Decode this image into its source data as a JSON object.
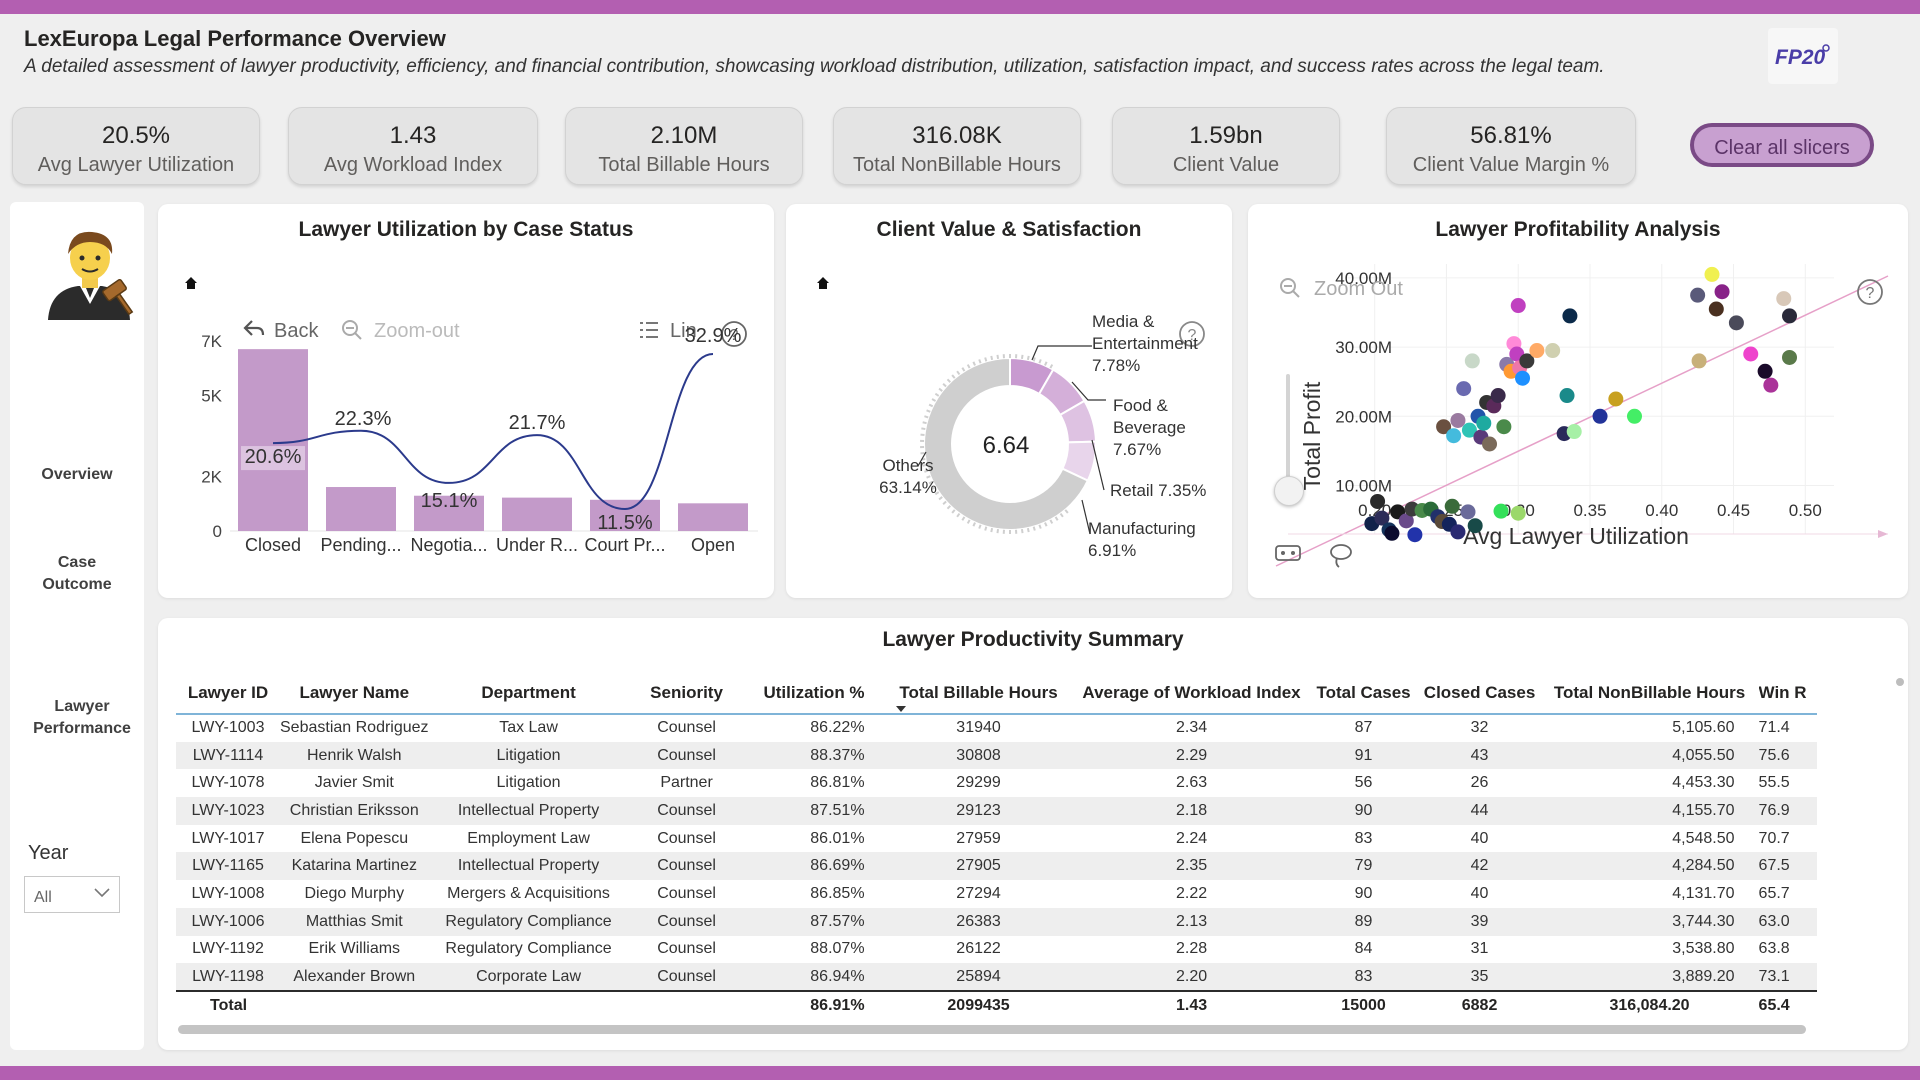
{
  "header": {
    "title": "LexEuropa Legal Performance Overview",
    "subtitle": "A detailed assessment of lawyer productivity, efficiency, and financial contribution, showcasing workload distribution, utilization, satisfaction impact, and success rates across the legal team.",
    "logo_text": "FP20"
  },
  "kpis": [
    {
      "value": "20.5%",
      "label": "Avg Lawyer Utilization"
    },
    {
      "value": "1.43",
      "label": "Avg Workload Index"
    },
    {
      "value": "2.10M",
      "label": "Total Billable Hours"
    },
    {
      "value": "316.08K",
      "label": "Total NonBillable Hours"
    },
    {
      "value": "1.59bn",
      "label": "Client Value"
    },
    {
      "value": "56.81%",
      "label": "Client Value Margin %"
    }
  ],
  "clear_button": "Clear all slicers",
  "nav": {
    "items": [
      "Overview",
      "Case\nOutcome",
      "Lawyer\nPerformance"
    ],
    "year_label": "Year",
    "year_value": "All"
  },
  "utilization_chart": {
    "title": "Lawyer Utilization by Case Status",
    "toolbar": {
      "back": "Back",
      "zoom": "Zoom-out",
      "lin": "Lin"
    }
  },
  "donut_chart": {
    "title": "Client Value & Satisfaction",
    "center_value": "6.64"
  },
  "scatter_chart": {
    "title": "Lawyer Profitability Analysis",
    "zoom_out": "Zoom Out"
  },
  "chart_data": [
    {
      "type": "bar",
      "title": "Lawyer Utilization by Case Status",
      "categories": [
        "Closed",
        "Pending...",
        "Negotia...",
        "Under R...",
        "Court Pr...",
        "Open"
      ],
      "series": [
        {
          "values": [
            6700,
            1620,
            1300,
            1230,
            1150,
            1020
          ]
        },
        {
          "type": "line",
          "values": [
            20.6,
            22.3,
            15.1,
            21.7,
            11.5,
            32.9
          ],
          "labels": [
            "20.6%",
            "22.3%",
            "15.1%",
            "21.7%",
            "11.5%",
            "32.9%"
          ]
        }
      ],
      "yticks": [
        "0",
        "2K",
        "5K",
        "7K"
      ],
      "ylim": [
        0,
        7000
      ]
    },
    {
      "type": "pie",
      "title": "Client Value & Satisfaction",
      "slices": [
        {
          "label": "Media & Entertainment",
          "value": 7.78,
          "text": "7.78%",
          "color": "#c89ad0"
        },
        {
          "label": "Food & Beverage",
          "value": 7.67,
          "text": "7.67%",
          "color": "#d4afd9"
        },
        {
          "label": "Retail",
          "value": 7.35,
          "text": "7.35%",
          "color": "#dec2e2"
        },
        {
          "label": "Manufacturing",
          "value": 6.91,
          "text": "6.91%",
          "color": "#e8d5eb"
        },
        {
          "label": "Others",
          "value": 63.14,
          "text": "63.14%",
          "color": "#cfcfcf"
        }
      ]
    },
    {
      "type": "scatter",
      "title": "Lawyer Profitability Analysis",
      "xlabel": "Avg Lawyer Utilization",
      "ylabel": "Total Profit",
      "xticks": [
        "0.20",
        "0.25",
        "0.30",
        "0.35",
        "0.40",
        "0.45",
        "0.50"
      ],
      "yticks": [
        "10.00M",
        "20.00M",
        "30.00M",
        "40.00M"
      ],
      "xlim": [
        0.18,
        0.52
      ],
      "ylim": [
        3000000,
        42000000
      ],
      "points": [
        {
          "x": 0.198,
          "y": 4.5,
          "c": "#11224a"
        },
        {
          "x": 0.205,
          "y": 5.3,
          "c": "#2c2c58"
        },
        {
          "x": 0.21,
          "y": 3.6,
          "c": "#14335c"
        },
        {
          "x": 0.216,
          "y": 6.2,
          "c": "#1a1a1a"
        },
        {
          "x": 0.222,
          "y": 4.9,
          "c": "#6a4a8a"
        },
        {
          "x": 0.226,
          "y": 6.6,
          "c": "#3c3c3c"
        },
        {
          "x": 0.233,
          "y": 6.4,
          "c": "#4a8a4a"
        },
        {
          "x": 0.239,
          "y": 6.6,
          "c": "#2c6c3a"
        },
        {
          "x": 0.244,
          "y": 5.5,
          "c": "#22306b"
        },
        {
          "x": 0.247,
          "y": 4.8,
          "c": "#5a4a3a"
        },
        {
          "x": 0.252,
          "y": 4.4,
          "c": "#14245c"
        },
        {
          "x": 0.254,
          "y": 7.0,
          "c": "#3a6b3a"
        },
        {
          "x": 0.258,
          "y": 3.3,
          "c": "#2a2a72"
        },
        {
          "x": 0.265,
          "y": 6.2,
          "c": "#6a6a9a"
        },
        {
          "x": 0.27,
          "y": 4.2,
          "c": "#184a48"
        },
        {
          "x": 0.288,
          "y": 6.3,
          "c": "#34e05a"
        },
        {
          "x": 0.3,
          "y": 6.0,
          "c": "#9bd86b"
        },
        {
          "x": 0.212,
          "y": 3.1,
          "c": "#0b0b2e"
        },
        {
          "x": 0.228,
          "y": 2.9,
          "c": "#2233aa"
        },
        {
          "x": 0.202,
          "y": 7.7,
          "c": "#2a2a2a"
        },
        {
          "x": 0.248,
          "y": 18.5,
          "c": "#6a5040"
        },
        {
          "x": 0.255,
          "y": 17.2,
          "c": "#44bbdd"
        },
        {
          "x": 0.258,
          "y": 19.4,
          "c": "#9a7aa0"
        },
        {
          "x": 0.262,
          "y": 24.0,
          "c": "#6a6ab0"
        },
        {
          "x": 0.266,
          "y": 18.0,
          "c": "#2ec4b6"
        },
        {
          "x": 0.268,
          "y": 28.0,
          "c": "#c8d8c8"
        },
        {
          "x": 0.272,
          "y": 20.0,
          "c": "#2255aa"
        },
        {
          "x": 0.274,
          "y": 17.0,
          "c": "#5a3a7a"
        },
        {
          "x": 0.276,
          "y": 19.0,
          "c": "#1eaaa0"
        },
        {
          "x": 0.278,
          "y": 22.0,
          "c": "#333333"
        },
        {
          "x": 0.28,
          "y": 16.0,
          "c": "#7a6a5a"
        },
        {
          "x": 0.283,
          "y": 21.5,
          "c": "#5a2a5a"
        },
        {
          "x": 0.286,
          "y": 23.0,
          "c": "#3a2a4a"
        },
        {
          "x": 0.29,
          "y": 18.5,
          "c": "#4a8a4a"
        },
        {
          "x": 0.292,
          "y": 27.5,
          "c": "#8a7aaa"
        },
        {
          "x": 0.295,
          "y": 26.5,
          "c": "#ff9933"
        },
        {
          "x": 0.297,
          "y": 30.5,
          "c": "#ff8ad8"
        },
        {
          "x": 0.299,
          "y": 29.0,
          "c": "#c040c0"
        },
        {
          "x": 0.3,
          "y": 36.0,
          "c": "#c040c0"
        },
        {
          "x": 0.301,
          "y": 27.0,
          "c": "#ee77aa"
        },
        {
          "x": 0.303,
          "y": 25.5,
          "c": "#1e90ff"
        },
        {
          "x": 0.306,
          "y": 28.0,
          "c": "#3a3a3a"
        },
        {
          "x": 0.313,
          "y": 29.5,
          "c": "#ffaa66"
        },
        {
          "x": 0.324,
          "y": 29.5,
          "c": "#d0d0b0"
        },
        {
          "x": 0.332,
          "y": 17.5,
          "c": "#2a2a5a"
        },
        {
          "x": 0.334,
          "y": 23.0,
          "c": "#1a8a8a"
        },
        {
          "x": 0.336,
          "y": 34.5,
          "c": "#0b2a4a"
        },
        {
          "x": 0.339,
          "y": 17.8,
          "c": "#a6f0a6"
        },
        {
          "x": 0.357,
          "y": 20.0,
          "c": "#223399"
        },
        {
          "x": 0.368,
          "y": 22.5,
          "c": "#c8a020"
        },
        {
          "x": 0.381,
          "y": 20.0,
          "c": "#44ee66"
        },
        {
          "x": 0.425,
          "y": 37.5,
          "c": "#5a5a7a"
        },
        {
          "x": 0.426,
          "y": 28.0,
          "c": "#c8b07a"
        },
        {
          "x": 0.435,
          "y": 40.5,
          "c": "#f0f050"
        },
        {
          "x": 0.438,
          "y": 35.5,
          "c": "#4a3020"
        },
        {
          "x": 0.442,
          "y": 38.0,
          "c": "#882288"
        },
        {
          "x": 0.452,
          "y": 33.5,
          "c": "#4a4a5a"
        },
        {
          "x": 0.462,
          "y": 29.0,
          "c": "#ee44cc"
        },
        {
          "x": 0.472,
          "y": 26.5,
          "c": "#1a0a2a"
        },
        {
          "x": 0.476,
          "y": 24.5,
          "c": "#aa3399"
        },
        {
          "x": 0.485,
          "y": 37.0,
          "c": "#d8c8b8"
        },
        {
          "x": 0.489,
          "y": 34.5,
          "c": "#2a2a3a"
        },
        {
          "x": 0.489,
          "y": 28.5,
          "c": "#5a7a4a"
        }
      ],
      "trend": [
        [
          0.18,
          2000000
        ],
        [
          0.52,
          45000000
        ]
      ]
    }
  ],
  "table": {
    "title": "Lawyer Productivity Summary",
    "columns": [
      "Lawyer ID",
      "Lawyer Name",
      "Department",
      "Seniority",
      "Utilization %",
      "Total Billable Hours",
      "Average of Workload Index",
      "Total Cases",
      "Closed Cases",
      "Total NonBillable Hours",
      "Win R"
    ],
    "rows": [
      [
        "LWY-1003",
        "Sebastian Rodriguez",
        "Tax Law",
        "Counsel",
        "86.22%",
        "31940",
        "2.34",
        "87",
        "32",
        "5,105.60",
        "71.4"
      ],
      [
        "LWY-1114",
        "Henrik Walsh",
        "Litigation",
        "Counsel",
        "88.37%",
        "30808",
        "2.29",
        "91",
        "43",
        "4,055.50",
        "75.6"
      ],
      [
        "LWY-1078",
        "Javier Smit",
        "Litigation",
        "Partner",
        "86.81%",
        "29299",
        "2.63",
        "56",
        "26",
        "4,453.30",
        "55.5"
      ],
      [
        "LWY-1023",
        "Christian Eriksson",
        "Intellectual Property",
        "Counsel",
        "87.51%",
        "29123",
        "2.18",
        "90",
        "44",
        "4,155.70",
        "76.9"
      ],
      [
        "LWY-1017",
        "Elena Popescu",
        "Employment Law",
        "Counsel",
        "86.01%",
        "27959",
        "2.24",
        "83",
        "40",
        "4,548.50",
        "70.7"
      ],
      [
        "LWY-1165",
        "Katarina Martinez",
        "Intellectual Property",
        "Counsel",
        "86.69%",
        "27905",
        "2.35",
        "79",
        "42",
        "4,284.50",
        "67.5"
      ],
      [
        "LWY-1008",
        "Diego Murphy",
        "Mergers & Acquisitions",
        "Counsel",
        "86.85%",
        "27294",
        "2.22",
        "90",
        "40",
        "4,131.70",
        "65.7"
      ],
      [
        "LWY-1006",
        "Matthias Smit",
        "Regulatory Compliance",
        "Counsel",
        "87.57%",
        "26383",
        "2.13",
        "89",
        "39",
        "3,744.30",
        "63.0"
      ],
      [
        "LWY-1192",
        "Erik Williams",
        "Regulatory Compliance",
        "Counsel",
        "88.07%",
        "26122",
        "2.28",
        "84",
        "31",
        "3,538.80",
        "63.8"
      ],
      [
        "LWY-1198",
        "Alexander Brown",
        "Corporate Law",
        "Counsel",
        "86.94%",
        "25894",
        "2.20",
        "83",
        "35",
        "3,889.20",
        "73.1"
      ]
    ],
    "total": [
      "Total",
      "",
      "",
      "",
      "86.91%",
      "2099435",
      "1.43",
      "15000",
      "6882",
      "316,084.20",
      "65.4"
    ]
  }
}
